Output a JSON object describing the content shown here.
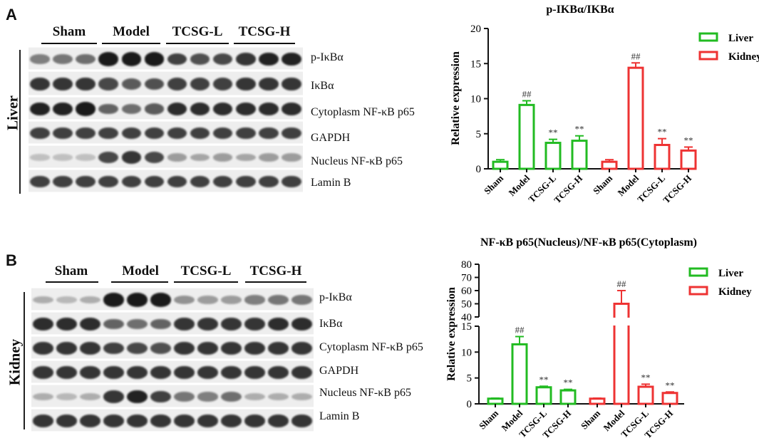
{
  "panels": [
    {
      "letter": "A",
      "tissue": "Liver",
      "groups": [
        "Sham",
        "Model",
        "TCSG-L",
        "TCSG-H"
      ],
      "blots": [
        {
          "label": "p-IκBα",
          "intensity": [
            0.45,
            0.5,
            0.55,
            1.0,
            1.0,
            1.0,
            0.8,
            0.7,
            0.75,
            0.85,
            0.95,
            0.95
          ]
        },
        {
          "label": "IκBα",
          "intensity": [
            0.85,
            0.85,
            0.85,
            0.75,
            0.65,
            0.7,
            0.8,
            0.8,
            0.8,
            0.85,
            0.85,
            0.85
          ]
        },
        {
          "label": "Cytoplasm NF-κB p65",
          "intensity": [
            0.95,
            0.95,
            1.0,
            0.6,
            0.55,
            0.65,
            0.9,
            0.9,
            0.9,
            0.9,
            0.9,
            0.9
          ]
        },
        {
          "label": "GAPDH",
          "intensity": [
            0.8,
            0.8,
            0.8,
            0.8,
            0.8,
            0.8,
            0.8,
            0.8,
            0.8,
            0.8,
            0.8,
            0.8
          ]
        },
        {
          "label": "Nucleus NF-κB p65",
          "intensity": [
            0.1,
            0.1,
            0.1,
            0.75,
            0.85,
            0.75,
            0.3,
            0.25,
            0.3,
            0.25,
            0.3,
            0.3
          ]
        },
        {
          "label": "Lamin B",
          "intensity": [
            0.8,
            0.8,
            0.8,
            0.8,
            0.8,
            0.8,
            0.8,
            0.8,
            0.8,
            0.8,
            0.8,
            0.8
          ]
        }
      ]
    },
    {
      "letter": "B",
      "tissue": "Kidney",
      "groups": [
        "Sham",
        "Model",
        "TCSG-L",
        "TCSG-H"
      ],
      "blots": [
        {
          "label": "p-IκBα",
          "intensity": [
            0.2,
            0.15,
            0.2,
            1.0,
            1.0,
            1.0,
            0.35,
            0.3,
            0.3,
            0.45,
            0.5,
            0.5
          ]
        },
        {
          "label": "IκBα",
          "intensity": [
            0.9,
            0.9,
            0.9,
            0.6,
            0.55,
            0.6,
            0.85,
            0.85,
            0.85,
            0.85,
            0.9,
            0.9
          ]
        },
        {
          "label": "Cytoplasm NF-κB p65",
          "intensity": [
            0.85,
            0.85,
            0.85,
            0.8,
            0.75,
            0.7,
            0.85,
            0.85,
            0.85,
            0.85,
            0.85,
            0.85
          ]
        },
        {
          "label": "GAPDH",
          "intensity": [
            0.85,
            0.85,
            0.85,
            0.85,
            0.85,
            0.85,
            0.85,
            0.85,
            0.85,
            0.85,
            0.85,
            0.85
          ]
        },
        {
          "label": "Nucleus NF-κB p65",
          "intensity": [
            0.2,
            0.15,
            0.2,
            0.85,
            0.95,
            0.8,
            0.5,
            0.45,
            0.55,
            0.2,
            0.2,
            0.2
          ]
        },
        {
          "label": "Lamin B",
          "intensity": [
            0.85,
            0.85,
            0.85,
            0.85,
            0.85,
            0.85,
            0.85,
            0.85,
            0.85,
            0.85,
            0.85,
            0.85
          ]
        }
      ]
    }
  ],
  "colors": {
    "liver": "#22bb22",
    "kidney": "#ee3333",
    "band": "#1a1a1a"
  },
  "chart_data": [
    {
      "type": "bar",
      "title": "p-IKBα/IKBα",
      "ylabel": "Relative expression",
      "categories": [
        "Sham",
        "Model",
        "TCSG-L",
        "TCSG-H"
      ],
      "ylim": [
        0,
        20
      ],
      "yticks": [
        0,
        5,
        10,
        15,
        20
      ],
      "legend": "top-right",
      "series": [
        {
          "name": "Liver",
          "values": [
            1.0,
            9.1,
            3.7,
            4.0
          ],
          "errors": [
            0.3,
            0.6,
            0.5,
            0.7
          ],
          "marks": [
            "",
            "##",
            "**",
            "**"
          ]
        },
        {
          "name": "Kidney",
          "values": [
            1.0,
            14.4,
            3.4,
            2.6
          ],
          "errors": [
            0.3,
            0.7,
            0.9,
            0.5
          ],
          "marks": [
            "",
            "##",
            "**",
            "**"
          ]
        }
      ]
    },
    {
      "type": "bar",
      "title": "NF-κB p65(Nucleus)/NF-κB p65(Cytoplasm)",
      "ylabel": "Relative expression",
      "categories": [
        "Sham",
        "Model",
        "TCSG-L",
        "TCSG-H"
      ],
      "ylim": [
        0,
        80
      ],
      "axis_break": [
        15,
        40
      ],
      "yticks": [
        0,
        5,
        10,
        15,
        40,
        50,
        60,
        70,
        80
      ],
      "legend": "top-right",
      "series": [
        {
          "name": "Liver",
          "values": [
            1.0,
            11.5,
            3.2,
            2.6
          ],
          "errors": [
            0.1,
            1.5,
            0.2,
            0.2
          ],
          "marks": [
            "",
            "##",
            "**",
            "**"
          ]
        },
        {
          "name": "Kidney",
          "values": [
            1.0,
            50.0,
            3.3,
            2.1
          ],
          "errors": [
            0.1,
            10.0,
            0.5,
            0.2
          ],
          "marks": [
            "",
            "##",
            "**",
            "**"
          ]
        }
      ]
    }
  ]
}
